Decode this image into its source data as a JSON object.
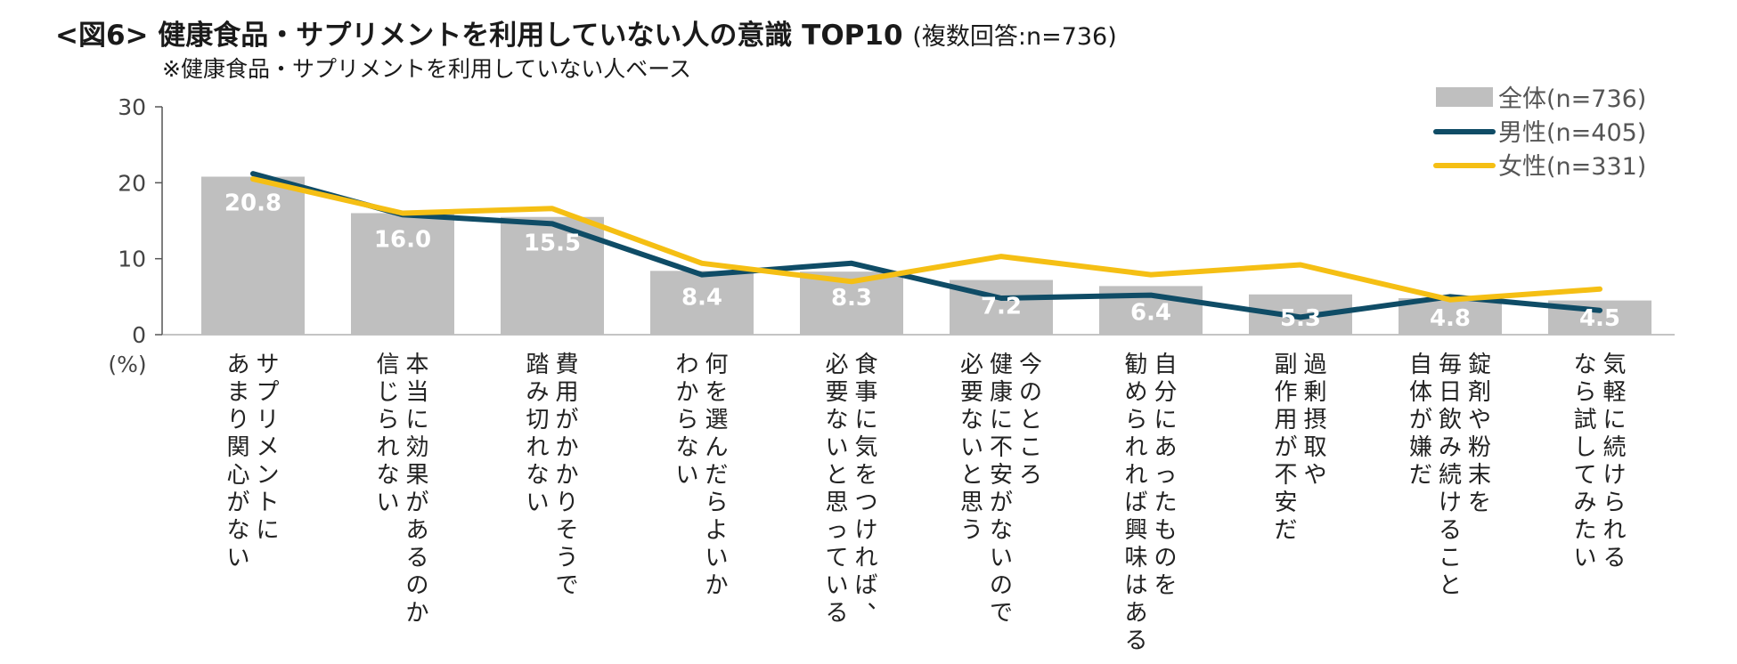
{
  "title": {
    "main": "<図6> 健康食品・サプリメントを利用していない人の意識 TOP10",
    "note": "(複数回答:n=736)",
    "subtitle": "※健康食品・サプリメントを利用していない人ベース"
  },
  "chart_data": {
    "type": "bar",
    "categories": [
      [
        "サプリメントに",
        "あまり関心がない"
      ],
      [
        "本当に効果があるのか",
        "信じられない"
      ],
      [
        "費用がかかりそうで",
        "踏み切れない"
      ],
      [
        "何を選んだらよいか",
        "わからない"
      ],
      [
        "食事に気をつければ、",
        "必要ないと思っている"
      ],
      [
        "今のところ",
        "健康に不安がないので",
        "必要ないと思う"
      ],
      [
        "自分にあったものを",
        "勧められれば興味はある"
      ],
      [
        "過剰摂取や",
        "副作用が不安だ"
      ],
      [
        "錠剤や粉末を",
        "毎日飲み続けること",
        "自体が嫌だ"
      ],
      [
        "気軽に続けられる",
        "なら試してみたい"
      ]
    ],
    "series": [
      {
        "name": "全体(n=736)",
        "kind": "bar",
        "color": "#bfbfbf",
        "values": [
          20.8,
          16.0,
          15.5,
          8.4,
          8.3,
          7.2,
          6.4,
          5.3,
          4.8,
          4.5
        ]
      },
      {
        "name": "男性(n=405)",
        "kind": "line",
        "color": "#0f4c66",
        "values": [
          21.2,
          15.8,
          14.6,
          7.9,
          9.4,
          4.8,
          5.2,
          2.3,
          5.0,
          3.2
        ]
      },
      {
        "name": "女性(n=331)",
        "kind": "line",
        "color": "#f5bf14",
        "values": [
          20.5,
          16.0,
          16.6,
          9.4,
          7.0,
          10.3,
          7.9,
          9.2,
          4.6,
          6.0
        ]
      }
    ],
    "yticks": [
      0,
      10,
      20,
      30
    ],
    "ylim": [
      0,
      30
    ],
    "yunit": "(%)",
    "legend": "top-right",
    "grid": false
  }
}
